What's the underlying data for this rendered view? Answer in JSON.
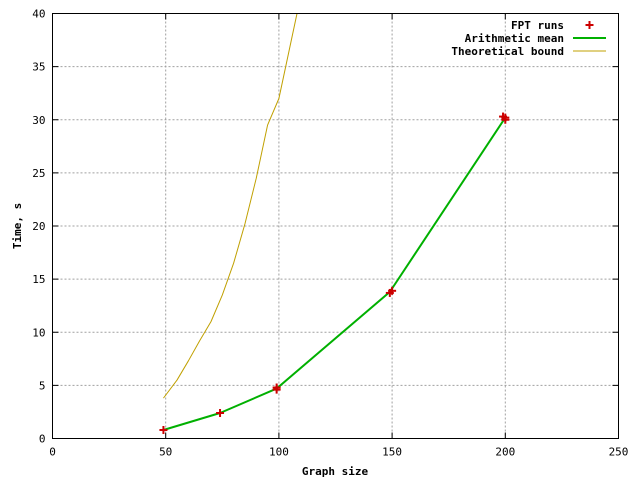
{
  "chart_data": {
    "type": "line",
    "title": "",
    "xlabel": "Graph size",
    "ylabel": "Time, s",
    "xlim": [
      0,
      250
    ],
    "ylim": [
      0,
      40
    ],
    "xticks": [
      "0",
      "50",
      "100",
      "150",
      "200",
      "250"
    ],
    "yticks": [
      "0",
      "5",
      "10",
      "15",
      "20",
      "25",
      "30",
      "35",
      "40"
    ],
    "grid": true,
    "legend_position": "top-right",
    "series": [
      {
        "name": "FPT runs",
        "kind": "points",
        "color": "#cc0000",
        "points": [
          [
            49,
            0.8
          ],
          [
            74,
            2.4
          ],
          [
            99,
            4.6
          ],
          [
            99,
            4.8
          ],
          [
            149,
            13.7
          ],
          [
            150,
            13.9
          ],
          [
            199,
            30.3
          ],
          [
            200,
            30.2
          ],
          [
            200,
            30.0
          ]
        ]
      },
      {
        "name": "Arithmetic mean",
        "kind": "line",
        "color": "#00b000",
        "points": [
          [
            49,
            0.8
          ],
          [
            74,
            2.4
          ],
          [
            99,
            4.7
          ],
          [
            149,
            13.8
          ],
          [
            200,
            30.2
          ]
        ]
      },
      {
        "name": "Theoretical bound",
        "kind": "line",
        "color": "#c0a000",
        "points": [
          [
            49,
            3.8
          ],
          [
            55,
            5.5
          ],
          [
            60,
            7.3
          ],
          [
            65,
            9.2
          ],
          [
            70,
            11.0
          ],
          [
            75,
            13.5
          ],
          [
            80,
            16.5
          ],
          [
            85,
            20.2
          ],
          [
            90,
            24.5
          ],
          [
            95,
            29.5
          ],
          [
            100,
            32.0
          ],
          [
            105,
            37.0
          ],
          [
            108,
            40.0
          ]
        ]
      }
    ]
  }
}
